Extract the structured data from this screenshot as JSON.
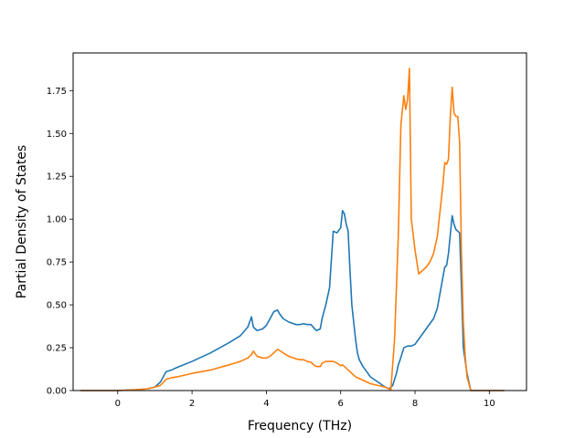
{
  "chart_data": {
    "type": "line",
    "title": "",
    "xlabel": "Frequency (THz)",
    "ylabel": "Partial Density of States",
    "xlim": [
      -1.2,
      11.0
    ],
    "ylim": [
      0.0,
      1.97
    ],
    "xticks": [
      0,
      2,
      4,
      6,
      8,
      10
    ],
    "xtick_labels": [
      "0",
      "2",
      "4",
      "6",
      "8",
      "10"
    ],
    "yticks": [
      0.0,
      0.25,
      0.5,
      0.75,
      1.0,
      1.25,
      1.5,
      1.75
    ],
    "ytick_labels": [
      "0.00",
      "0.25",
      "0.50",
      "0.75",
      "1.00",
      "1.25",
      "1.50",
      "1.75"
    ],
    "grid": false,
    "legend": "none",
    "series": [
      {
        "color": "#1f77b4",
        "x": [
          -1.0,
          0.0,
          0.5,
          0.8,
          1.0,
          1.15,
          1.3,
          1.45,
          1.6,
          2.0,
          2.5,
          3.0,
          3.3,
          3.5,
          3.6,
          3.65,
          3.75,
          3.9,
          4.0,
          4.1,
          4.2,
          4.3,
          4.35,
          4.45,
          4.6,
          4.8,
          4.9,
          5.0,
          5.1,
          5.2,
          5.3,
          5.35,
          5.45,
          5.5,
          5.6,
          5.7,
          5.8,
          5.9,
          6.0,
          6.05,
          6.1,
          6.15,
          6.2,
          6.25,
          6.3,
          6.4,
          6.45,
          6.5,
          6.6,
          6.7,
          6.8,
          7.0,
          7.2,
          7.3,
          7.4,
          7.5,
          7.55,
          7.6,
          7.7,
          7.8,
          7.9,
          8.0,
          8.1,
          8.2,
          8.3,
          8.5,
          8.6,
          8.7,
          8.8,
          8.85,
          8.9,
          9.0,
          9.05,
          9.1,
          9.15,
          9.2,
          9.25,
          9.3,
          9.4,
          9.5,
          9.6,
          10.0,
          10.4
        ],
        "values": [
          0.0,
          0.0,
          0.005,
          0.01,
          0.02,
          0.05,
          0.11,
          0.12,
          0.135,
          0.17,
          0.22,
          0.28,
          0.32,
          0.37,
          0.43,
          0.37,
          0.35,
          0.36,
          0.38,
          0.42,
          0.46,
          0.47,
          0.45,
          0.42,
          0.4,
          0.385,
          0.385,
          0.39,
          0.385,
          0.385,
          0.36,
          0.35,
          0.36,
          0.42,
          0.5,
          0.6,
          0.93,
          0.92,
          0.95,
          1.05,
          1.03,
          0.97,
          0.93,
          0.7,
          0.5,
          0.3,
          0.22,
          0.18,
          0.14,
          0.11,
          0.08,
          0.05,
          0.02,
          0.01,
          0.03,
          0.1,
          0.15,
          0.18,
          0.25,
          0.26,
          0.26,
          0.27,
          0.3,
          0.33,
          0.36,
          0.42,
          0.48,
          0.6,
          0.72,
          0.73,
          0.8,
          1.02,
          0.97,
          0.94,
          0.93,
          0.92,
          0.6,
          0.25,
          0.1,
          0.0,
          0.0,
          0.0,
          0.0
        ]
      },
      {
        "color": "#ff7f0e",
        "x": [
          -1.0,
          0.0,
          0.5,
          0.8,
          1.0,
          1.15,
          1.3,
          1.45,
          1.6,
          2.0,
          2.5,
          3.0,
          3.3,
          3.5,
          3.6,
          3.65,
          3.75,
          3.9,
          4.0,
          4.1,
          4.2,
          4.3,
          4.35,
          4.45,
          4.6,
          4.8,
          4.9,
          5.0,
          5.1,
          5.2,
          5.3,
          5.35,
          5.45,
          5.5,
          5.6,
          5.7,
          5.8,
          5.9,
          6.0,
          6.05,
          6.1,
          6.2,
          6.3,
          6.4,
          6.5,
          6.6,
          6.7,
          6.8,
          7.0,
          7.2,
          7.3,
          7.35,
          7.45,
          7.55,
          7.62,
          7.7,
          7.75,
          7.8,
          7.85,
          7.9,
          8.0,
          8.1,
          8.2,
          8.3,
          8.4,
          8.5,
          8.6,
          8.7,
          8.75,
          8.8,
          8.85,
          8.9,
          8.95,
          9.0,
          9.05,
          9.1,
          9.15,
          9.2,
          9.25,
          9.3,
          9.35,
          9.4,
          9.5,
          9.6,
          10.0,
          10.4
        ],
        "values": [
          0.0,
          0.0,
          0.005,
          0.01,
          0.02,
          0.03,
          0.065,
          0.075,
          0.08,
          0.1,
          0.12,
          0.15,
          0.17,
          0.19,
          0.21,
          0.23,
          0.2,
          0.19,
          0.19,
          0.2,
          0.22,
          0.24,
          0.235,
          0.22,
          0.2,
          0.185,
          0.18,
          0.18,
          0.17,
          0.165,
          0.145,
          0.14,
          0.14,
          0.16,
          0.17,
          0.17,
          0.17,
          0.16,
          0.145,
          0.15,
          0.14,
          0.12,
          0.1,
          0.08,
          0.07,
          0.06,
          0.05,
          0.04,
          0.03,
          0.02,
          0.01,
          0.005,
          0.3,
          0.9,
          1.55,
          1.72,
          1.64,
          1.7,
          1.88,
          1.0,
          0.82,
          0.68,
          0.7,
          0.72,
          0.75,
          0.8,
          0.9,
          1.1,
          1.2,
          1.33,
          1.32,
          1.35,
          1.6,
          1.77,
          1.62,
          1.6,
          1.6,
          1.45,
          0.8,
          0.4,
          0.2,
          0.08,
          0.0,
          0.0,
          0.0,
          0.0
        ]
      }
    ]
  }
}
